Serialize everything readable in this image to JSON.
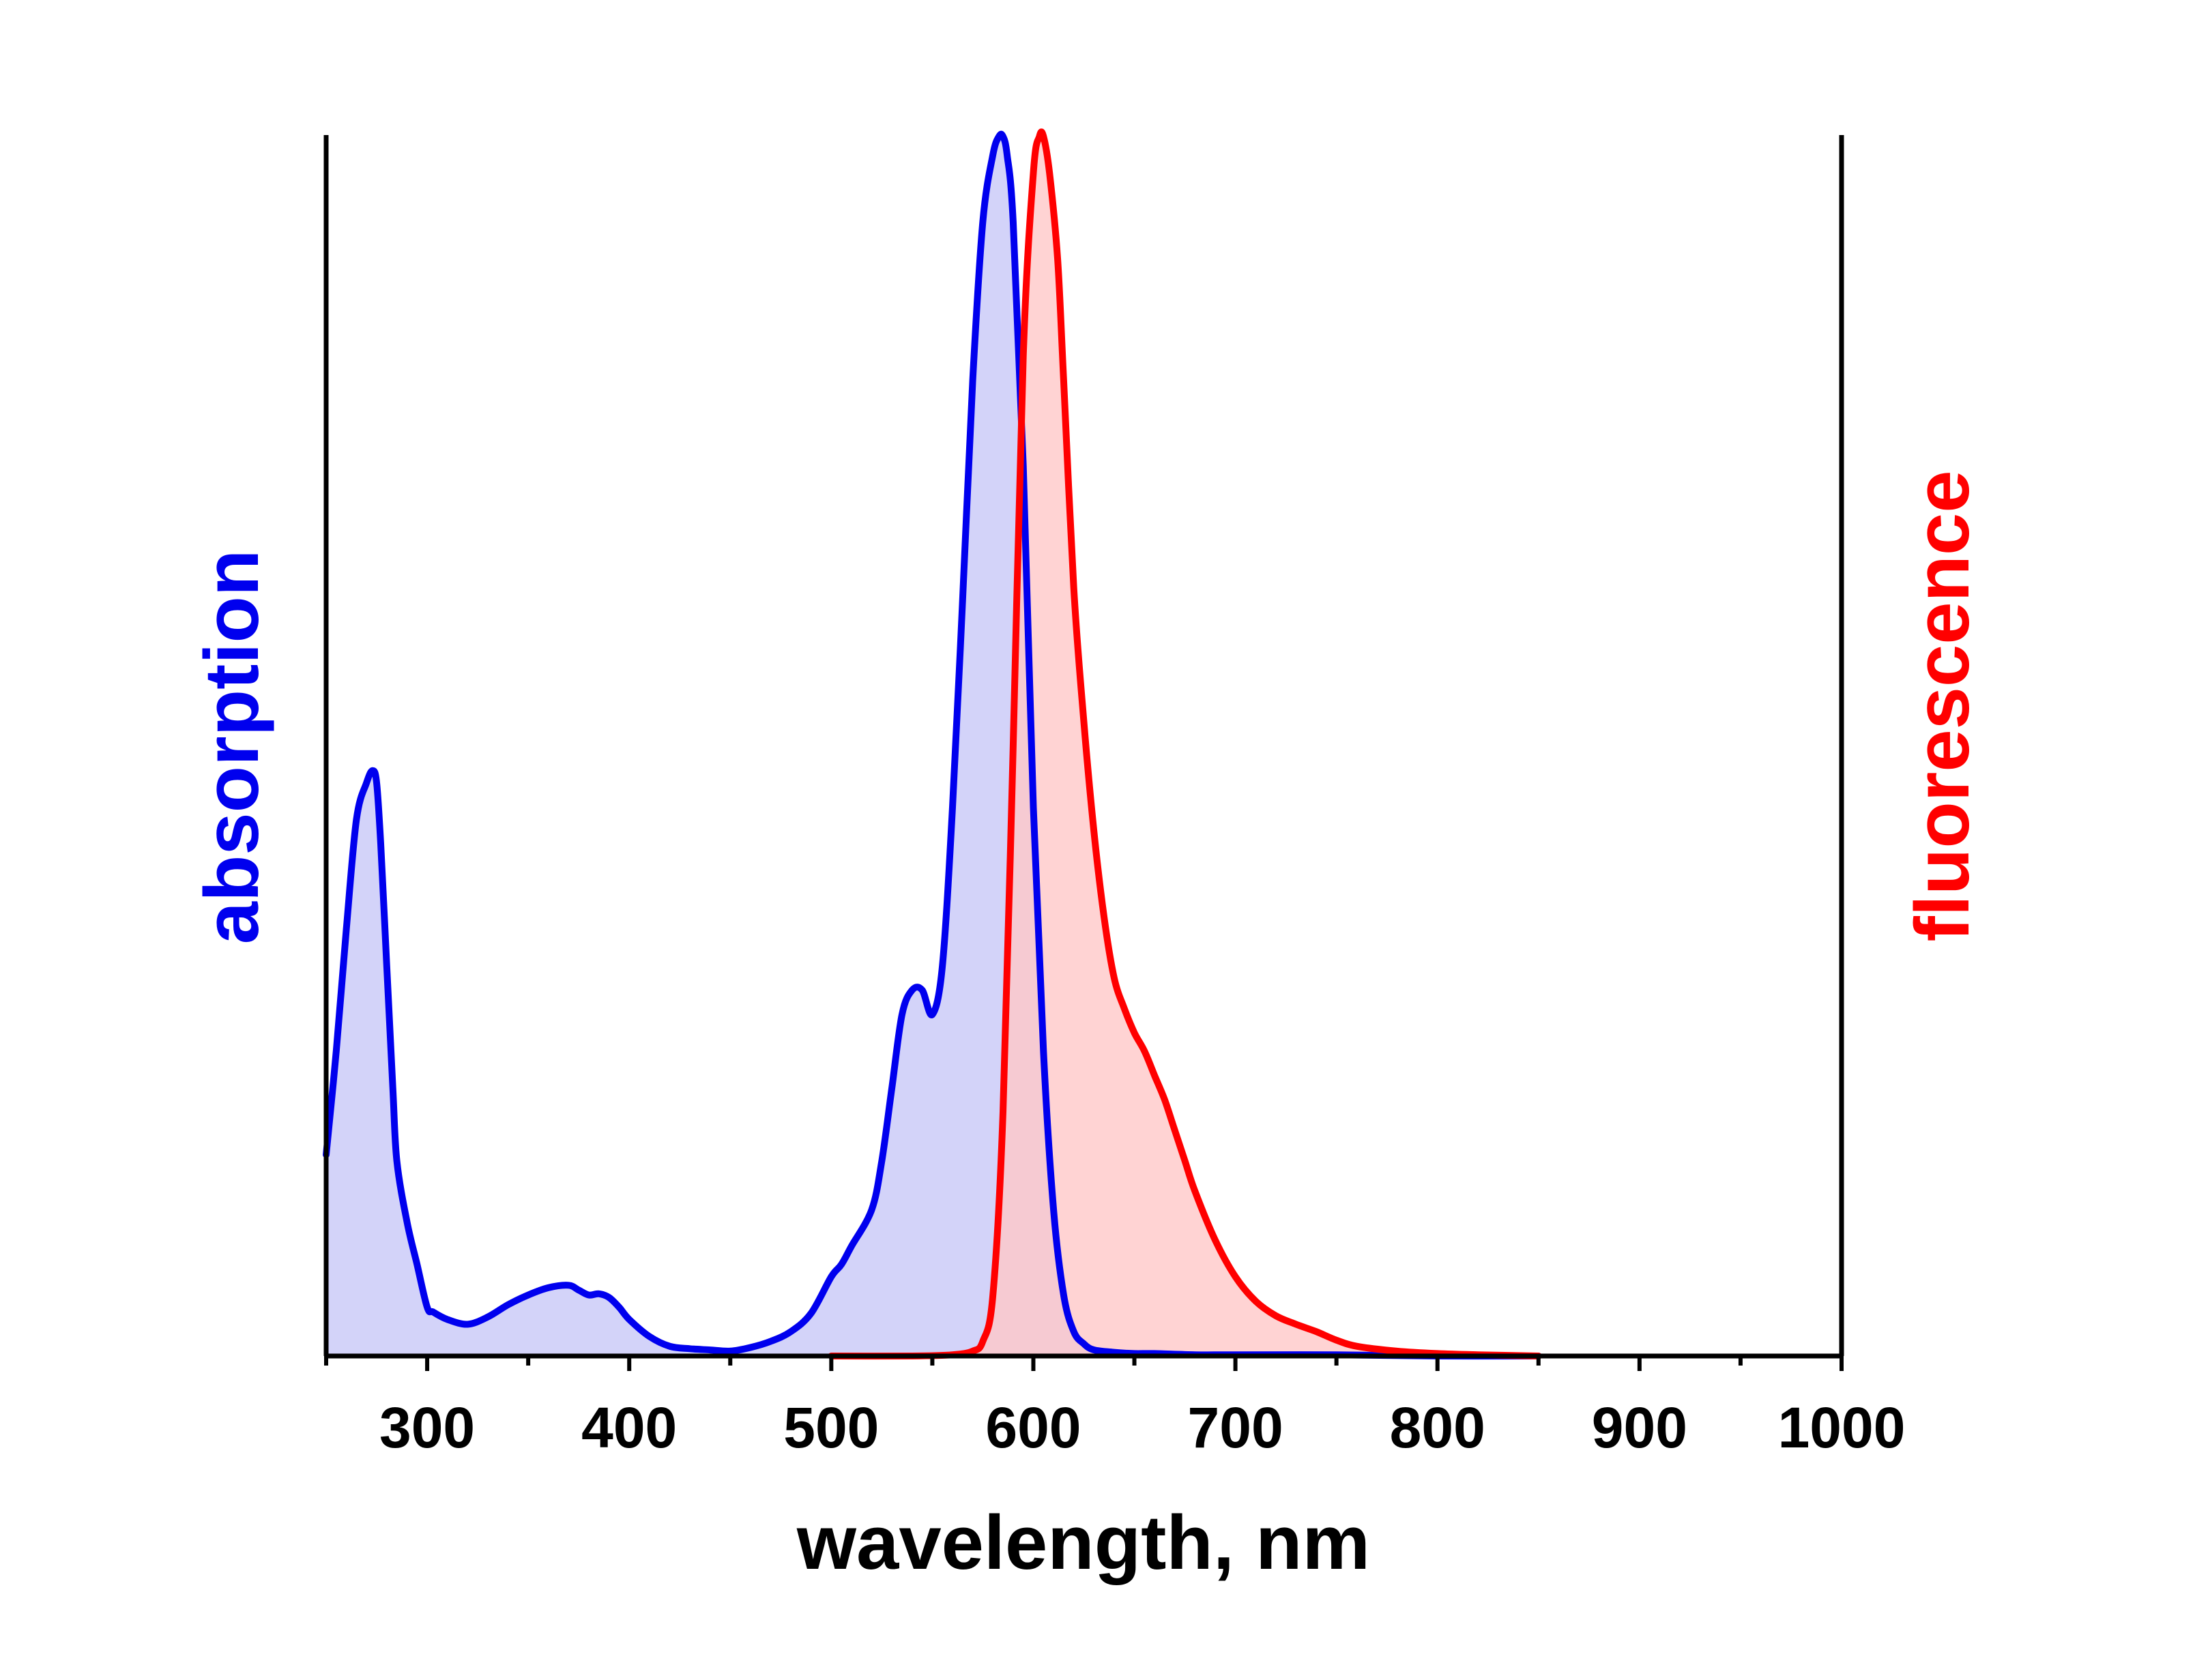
{
  "chart_data": {
    "type": "area",
    "xlabel": "wavelength, nm",
    "ylabel_left": "absorption",
    "ylabel_right": "fluorescence",
    "xlim": [
      250,
      1000
    ],
    "ylim": [
      0,
      1
    ],
    "xticks": [
      300,
      400,
      500,
      600,
      700,
      800,
      900,
      1000
    ],
    "minor_xticks": [
      250,
      350,
      450,
      550,
      650,
      750,
      850,
      950
    ],
    "grid": false,
    "legend": "none",
    "colors": {
      "absorption_line": "#0000ee",
      "absorption_fill": "#c8c8f8",
      "fluorescence_line": "#ff0000",
      "fluorescence_fill": "#ffc8c8",
      "axis": "#000000"
    },
    "series": [
      {
        "key": "absorption",
        "x": [
          250,
          255,
          260,
          265,
          270,
          273,
          275,
          277,
          280,
          283,
          285,
          290,
          295,
          300,
          303,
          310,
          320,
          330,
          340,
          350,
          360,
          370,
          375,
          380,
          385,
          390,
          395,
          400,
          410,
          420,
          430,
          440,
          450,
          460,
          470,
          480,
          490,
          500,
          505,
          510,
          520,
          525,
          530,
          535,
          540,
          545,
          550,
          555,
          560,
          565,
          570,
          575,
          580,
          583,
          585,
          587,
          590,
          595,
          600,
          605,
          610,
          615,
          620,
          625,
          630,
          640,
          650,
          660,
          680,
          700,
          750,
          800,
          850
        ],
        "y": [
          0.165,
          0.25,
          0.35,
          0.44,
          0.47,
          0.48,
          0.47,
          0.42,
          0.32,
          0.22,
          0.16,
          0.11,
          0.075,
          0.04,
          0.036,
          0.03,
          0.026,
          0.032,
          0.042,
          0.05,
          0.056,
          0.058,
          0.054,
          0.05,
          0.051,
          0.048,
          0.04,
          0.03,
          0.016,
          0.008,
          0.006,
          0.005,
          0.004,
          0.007,
          0.012,
          0.02,
          0.035,
          0.065,
          0.075,
          0.09,
          0.12,
          0.16,
          0.22,
          0.28,
          0.3,
          0.3,
          0.28,
          0.32,
          0.45,
          0.62,
          0.8,
          0.93,
          0.985,
          1.0,
          1.0,
          0.985,
          0.93,
          0.73,
          0.45,
          0.25,
          0.12,
          0.05,
          0.02,
          0.01,
          0.005,
          0.003,
          0.002,
          0.002,
          0.001,
          0.001,
          0.001,
          0.0,
          0.0
        ]
      },
      {
        "key": "fluorescence",
        "x": [
          500,
          540,
          560,
          570,
          575,
          580,
          585,
          590,
          595,
          600,
          603,
          605,
          608,
          612,
          615,
          620,
          625,
          630,
          635,
          640,
          645,
          650,
          655,
          660,
          665,
          670,
          675,
          680,
          690,
          700,
          710,
          720,
          730,
          740,
          750,
          760,
          780,
          800,
          820,
          850
        ],
        "y": [
          0.0,
          0.0,
          0.001,
          0.004,
          0.012,
          0.05,
          0.2,
          0.5,
          0.82,
          0.97,
          1.0,
          1.0,
          0.97,
          0.9,
          0.8,
          0.63,
          0.52,
          0.43,
          0.36,
          0.31,
          0.285,
          0.265,
          0.25,
          0.23,
          0.21,
          0.185,
          0.16,
          0.135,
          0.095,
          0.065,
          0.045,
          0.033,
          0.026,
          0.02,
          0.013,
          0.008,
          0.004,
          0.002,
          0.001,
          0.0
        ]
      }
    ]
  }
}
